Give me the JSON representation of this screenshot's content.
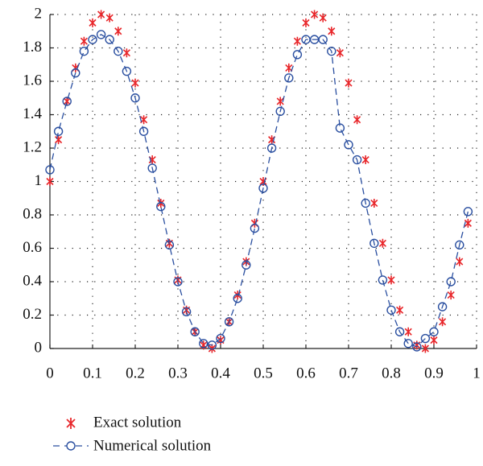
{
  "chart_data": {
    "type": "scatter",
    "x": [
      0,
      0.02,
      0.04,
      0.06,
      0.08,
      0.1,
      0.12,
      0.14,
      0.16,
      0.18,
      0.2,
      0.22,
      0.24,
      0.26,
      0.28,
      0.3,
      0.32,
      0.34,
      0.36,
      0.38,
      0.4,
      0.42,
      0.44,
      0.46,
      0.48,
      0.5,
      0.52,
      0.54,
      0.56,
      0.58,
      0.6,
      0.62,
      0.64,
      0.66,
      0.68,
      0.7,
      0.72,
      0.74,
      0.76,
      0.78,
      0.8,
      0.82,
      0.84,
      0.86,
      0.88,
      0.9,
      0.92,
      0.94,
      0.96,
      0.98
    ],
    "series": [
      {
        "name": "Exact solution",
        "color": "#e8262a",
        "marker": "star",
        "line": false,
        "values": [
          1.0,
          1.25,
          1.48,
          1.68,
          1.84,
          1.95,
          2.0,
          1.98,
          1.9,
          1.77,
          1.59,
          1.37,
          1.13,
          0.87,
          0.63,
          0.41,
          0.23,
          0.1,
          0.02,
          0.0,
          0.05,
          0.16,
          0.32,
          0.52,
          0.75,
          1.0,
          1.25,
          1.48,
          1.68,
          1.84,
          1.95,
          2.0,
          1.98,
          1.9,
          1.77,
          1.59,
          1.37,
          1.13,
          0.87,
          0.63,
          0.41,
          0.23,
          0.1,
          0.02,
          0.0,
          0.05,
          0.16,
          0.32,
          0.52,
          0.75
        ]
      },
      {
        "name": "Numerical solution",
        "color": "#2a4fa0",
        "marker": "circle",
        "line": true,
        "values": [
          1.07,
          1.3,
          1.48,
          1.65,
          1.78,
          1.85,
          1.88,
          1.85,
          1.78,
          1.66,
          1.5,
          1.3,
          1.08,
          0.85,
          0.62,
          0.4,
          0.22,
          0.1,
          0.03,
          0.02,
          0.06,
          0.16,
          0.3,
          0.5,
          0.72,
          0.96,
          1.2,
          1.42,
          1.62,
          1.76,
          1.85,
          1.85,
          1.85,
          1.78,
          1.32,
          1.22,
          1.13,
          0.87,
          0.63,
          0.41,
          0.23,
          0.1,
          0.03,
          0.01,
          0.06,
          0.1,
          0.25,
          0.4,
          0.62,
          0.82
        ]
      }
    ],
    "xlim": [
      0,
      1
    ],
    "xticks": [
      0,
      0.1,
      0.2,
      0.3,
      0.4,
      0.5,
      0.6,
      0.7,
      0.8,
      0.9,
      1
    ],
    "ylim": [
      0,
      2
    ],
    "yticks": [
      0,
      0.2,
      0.4,
      0.6,
      0.8,
      1,
      1.2,
      1.4,
      1.6,
      1.8,
      2
    ],
    "grid": true
  }
}
